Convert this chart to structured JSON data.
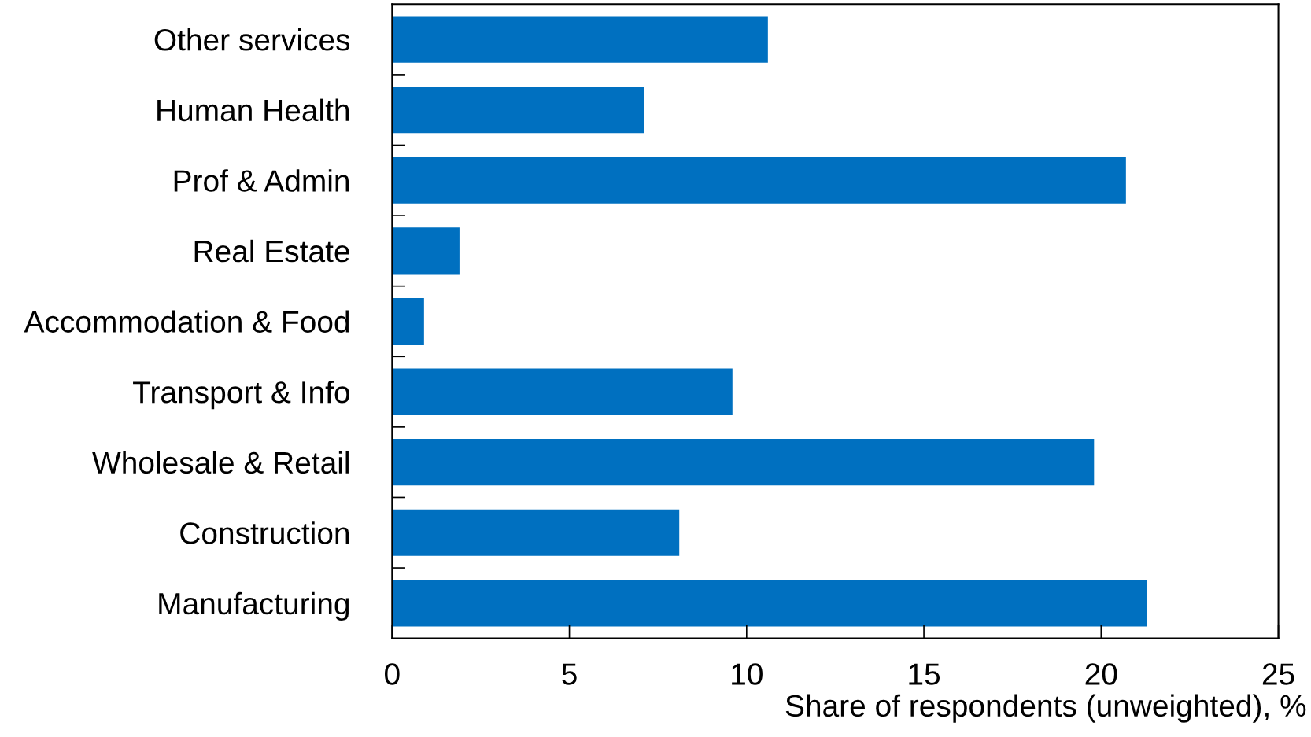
{
  "chart_data": {
    "type": "bar",
    "orientation": "horizontal",
    "xlabel": "Share of respondents (unweighted), %",
    "categories": [
      "Other services",
      "Human Health",
      "Prof & Admin",
      "Real Estate",
      "Accommodation & Food",
      "Transport & Info",
      "Wholesale & Retail",
      "Construction",
      "Manufacturing"
    ],
    "values": [
      10.6,
      7.1,
      20.7,
      1.9,
      0.9,
      9.6,
      19.8,
      8.1,
      21.3
    ],
    "color": "#0070c0",
    "xlim": [
      0,
      25
    ],
    "xticks": [
      0,
      5,
      10,
      15,
      20,
      25
    ],
    "grid": false
  }
}
